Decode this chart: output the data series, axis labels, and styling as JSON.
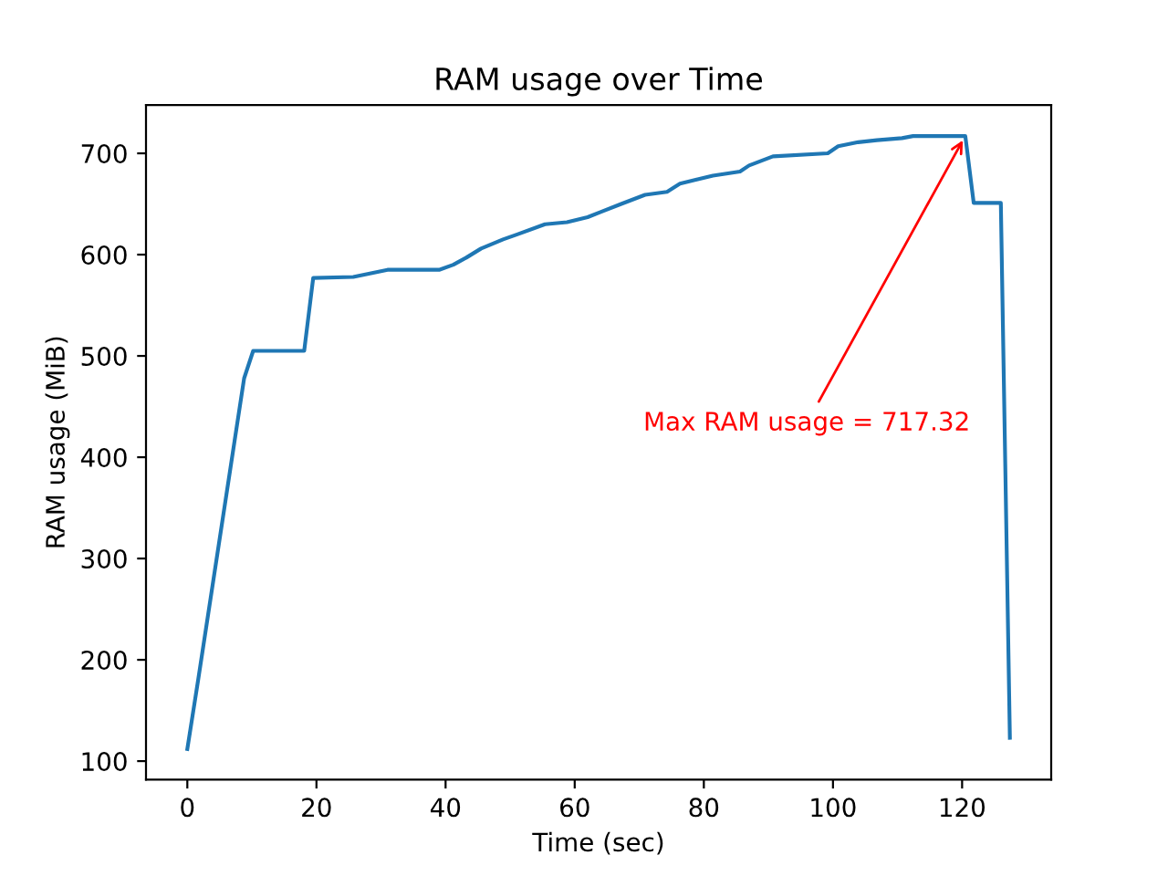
{
  "chart_data": {
    "type": "line",
    "title": "RAM usage over Time",
    "xlabel": "Time (sec)",
    "ylabel": "RAM usage (MiB)",
    "x": [
      0,
      1.7,
      8.8,
      10.2,
      18.1,
      19.5,
      25.7,
      31,
      39,
      41.2,
      43.2,
      45.5,
      48.9,
      51.1,
      55.4,
      58.8,
      62,
      64,
      67.2,
      70.9,
      74.3,
      76.3,
      81.4,
      85.6,
      87,
      90.7,
      99.2,
      100.8,
      103.9,
      106.8,
      110.7,
      112.4,
      120.5,
      121.8,
      126,
      127.4
    ],
    "series": [
      {
        "color": "#1f77b4",
        "values": [
          112,
          181,
          478,
          505,
          505,
          577,
          578,
          585,
          585,
          590,
          597,
          606,
          615,
          620,
          630,
          632,
          637,
          642,
          650,
          659,
          662,
          670,
          678,
          682,
          688,
          697,
          700,
          707,
          711,
          713,
          715,
          717,
          717,
          651,
          651,
          123
        ]
      }
    ],
    "xlim": [
      -6.4,
      133.8
    ],
    "ylim": [
      81.7,
      747.6
    ],
    "xticks": [
      0,
      20,
      40,
      60,
      80,
      100,
      120
    ],
    "yticks": [
      100,
      200,
      300,
      400,
      500,
      600,
      700
    ],
    "annotations": [
      {
        "text": "Max RAM usage = 717.32",
        "x": 120.5,
        "y": 717.32
      }
    ],
    "grid": false,
    "legend": false
  }
}
